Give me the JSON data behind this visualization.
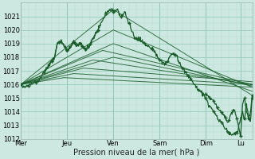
{
  "bg_color": "#cce8e0",
  "plot_bg_color": "#cce8e0",
  "grid_major_color": "#99ccbb",
  "grid_minor_color": "#b8ddd5",
  "line_color": "#1a5c2a",
  "ylim": [
    1012,
    1022
  ],
  "yticks": [
    1012,
    1013,
    1014,
    1015,
    1016,
    1017,
    1018,
    1019,
    1020,
    1021
  ],
  "xlabel": "Pression niveau de la mer( hPa )",
  "xtick_labels": [
    "Mer",
    "Jeu",
    "Ven",
    "Sam",
    "Dim",
    "Lu"
  ],
  "xtick_positions": [
    0,
    48,
    96,
    144,
    192,
    228
  ],
  "xlim": [
    0,
    240
  ],
  "axis_fontsize": 7.0,
  "tick_fontsize": 6.0
}
